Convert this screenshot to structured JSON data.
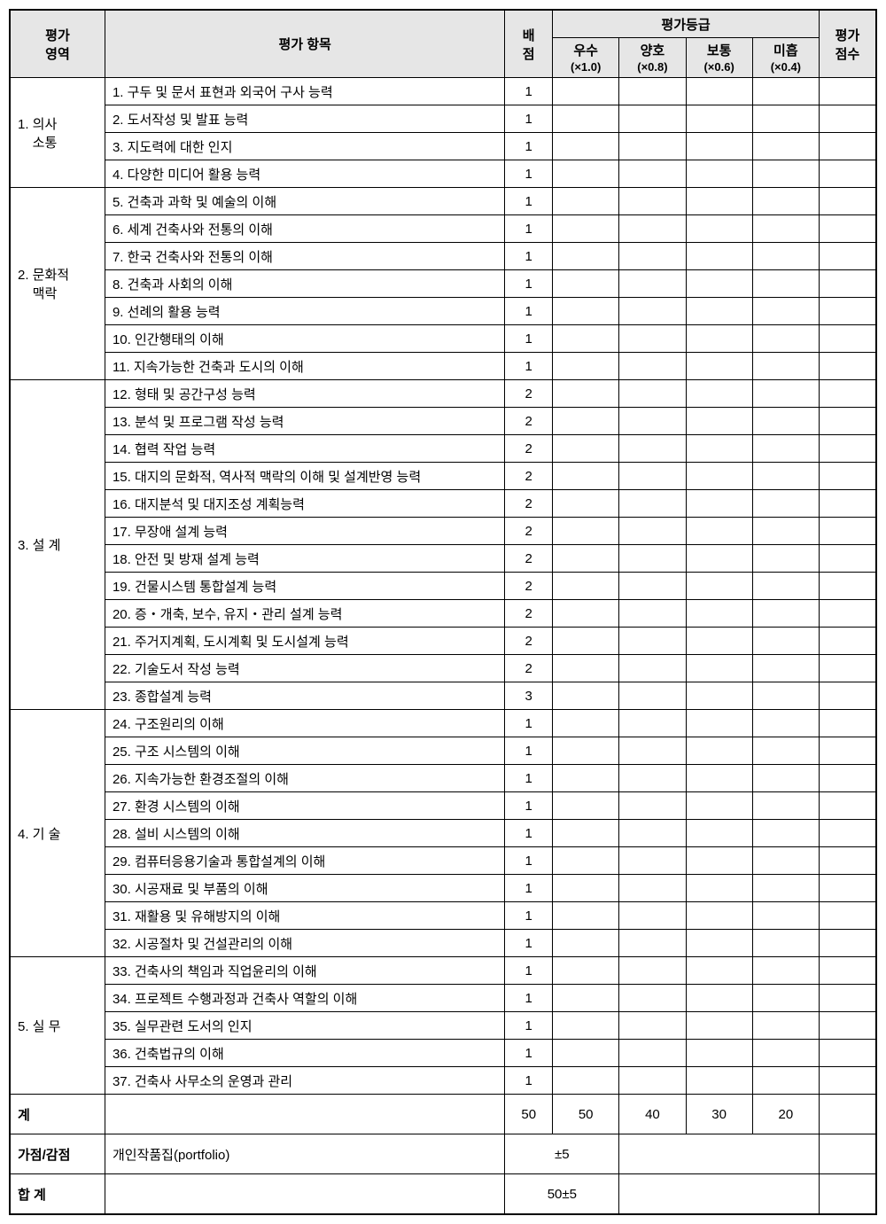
{
  "header": {
    "area": "평가\n영역",
    "item": "평가 항목",
    "score": "배\n점",
    "grade_group": "평가등급",
    "grades": [
      {
        "label": "우수",
        "mult": "(×1.0)"
      },
      {
        "label": "양호",
        "mult": "(×0.8)"
      },
      {
        "label": "보통",
        "mult": "(×0.6)"
      },
      {
        "label": "미흡",
        "mult": "(×0.4)"
      }
    ],
    "final": "평가\n점수"
  },
  "sections": [
    {
      "area": "1. 의사\n    소통",
      "items": [
        {
          "label": "1. 구두 및 문서 표현과 외국어 구사 능력",
          "score": "1"
        },
        {
          "label": "2. 도서작성 및 발표 능력",
          "score": "1"
        },
        {
          "label": "3. 지도력에 대한 인지",
          "score": "1"
        },
        {
          "label": "4. 다양한 미디어 활용 능력",
          "score": "1"
        }
      ]
    },
    {
      "area": "2. 문화적\n    맥락",
      "items": [
        {
          "label": "5. 건축과 과학 및 예술의 이해",
          "score": "1"
        },
        {
          "label": "6. 세계 건축사와 전통의 이해",
          "score": "1"
        },
        {
          "label": "7. 한국 건축사와 전통의 이해",
          "score": "1"
        },
        {
          "label": "8. 건축과 사회의 이해",
          "score": "1"
        },
        {
          "label": "9. 선례의 활용 능력",
          "score": "1"
        },
        {
          "label": "10. 인간행태의 이해",
          "score": "1"
        },
        {
          "label": "11. 지속가능한 건축과 도시의 이해",
          "score": "1"
        }
      ]
    },
    {
      "area": "3. 설 계",
      "items": [
        {
          "label": "12. 형태 및 공간구성 능력",
          "score": "2"
        },
        {
          "label": "13. 분석 및 프로그램 작성 능력",
          "score": "2"
        },
        {
          "label": "14. 협력 작업 능력",
          "score": "2"
        },
        {
          "label": "15. 대지의 문화적, 역사적 맥락의 이해 및 설계반영 능력",
          "score": "2"
        },
        {
          "label": "16. 대지분석 및 대지조성 계획능력",
          "score": "2"
        },
        {
          "label": "17. 무장애 설계 능력",
          "score": "2"
        },
        {
          "label": "18. 안전 및 방재 설계 능력",
          "score": "2"
        },
        {
          "label": "19. 건물시스템 통합설계 능력",
          "score": "2"
        },
        {
          "label": "20. 증・개축, 보수, 유지・관리 설계 능력",
          "score": "2"
        },
        {
          "label": "21. 주거지계획, 도시계획 및 도시설계 능력",
          "score": "2"
        },
        {
          "label": "22. 기술도서 작성 능력",
          "score": "2"
        },
        {
          "label": "23. 종합설계 능력",
          "score": "3"
        }
      ]
    },
    {
      "area": "4. 기 술",
      "items": [
        {
          "label": "24. 구조원리의 이해",
          "score": "1"
        },
        {
          "label": "25. 구조 시스템의 이해",
          "score": "1"
        },
        {
          "label": "26. 지속가능한 환경조절의 이해",
          "score": "1"
        },
        {
          "label": "27. 환경 시스템의 이해",
          "score": "1"
        },
        {
          "label": "28. 설비 시스템의 이해",
          "score": "1"
        },
        {
          "label": "29. 컴퓨터응용기술과 통합설계의 이해",
          "score": "1"
        },
        {
          "label": "30. 시공재료 및 부품의 이해",
          "score": "1"
        },
        {
          "label": "31. 재활용 및 유해방지의 이해",
          "score": "1"
        },
        {
          "label": "32. 시공절차 및 건설관리의 이해",
          "score": "1"
        }
      ]
    },
    {
      "area": "5. 실 무",
      "items": [
        {
          "label": "33. 건축사의 책임과 직업윤리의 이해",
          "score": "1"
        },
        {
          "label": "34. 프로젝트 수행과정과 건축사 역할의 이해",
          "score": "1"
        },
        {
          "label": "35. 실무관련 도서의 인지",
          "score": "1"
        },
        {
          "label": "36. 건축법규의 이해",
          "score": "1"
        },
        {
          "label": "37. 건축사 사무소의 운영과 관리",
          "score": "1"
        }
      ]
    }
  ],
  "footer": {
    "subtotal": {
      "label": "계",
      "score": "50",
      "grades": [
        "50",
        "40",
        "30",
        "20"
      ]
    },
    "bonus": {
      "label": "가점/감점",
      "item": "개인작품집(portfolio)",
      "score": "±5"
    },
    "total": {
      "label": "합 계",
      "score": "50±5"
    }
  }
}
